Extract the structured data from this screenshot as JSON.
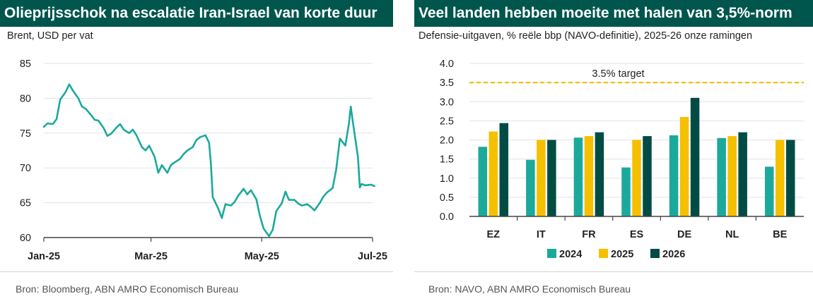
{
  "chart_data": [
    {
      "type": "line",
      "title": "Olieprijsschok na escalatie Iran-Israel van korte duur",
      "subtitle": "Brent, USD per vat",
      "source": "Bron: Bloomberg, ABN AMRO Economisch Bureau",
      "x_tick_labels": [
        "Jan-25",
        "Mar-25",
        "May-25",
        "Jul-25"
      ],
      "ylim": [
        60,
        85
      ],
      "y_ticks": [
        60,
        65,
        70,
        75,
        80,
        85
      ],
      "grid": true,
      "series": [
        {
          "color": "#1ba99c",
          "x": [
            "2025-01-01",
            "2025-01-03",
            "2025-01-06",
            "2025-01-08",
            "2025-01-10",
            "2025-01-13",
            "2025-01-15",
            "2025-01-17",
            "2025-01-20",
            "2025-01-22",
            "2025-01-24",
            "2025-01-27",
            "2025-01-29",
            "2025-01-31",
            "2025-02-03",
            "2025-02-05",
            "2025-02-07",
            "2025-02-10",
            "2025-02-12",
            "2025-02-14",
            "2025-02-17",
            "2025-02-19",
            "2025-02-21",
            "2025-02-24",
            "2025-02-26",
            "2025-02-28",
            "2025-03-03",
            "2025-03-05",
            "2025-03-07",
            "2025-03-10",
            "2025-03-12",
            "2025-03-14",
            "2025-03-17",
            "2025-03-19",
            "2025-03-21",
            "2025-03-24",
            "2025-03-26",
            "2025-03-28",
            "2025-03-31",
            "2025-04-02",
            "2025-04-03",
            "2025-04-04",
            "2025-04-07",
            "2025-04-09",
            "2025-04-11",
            "2025-04-14",
            "2025-04-16",
            "2025-04-18",
            "2025-04-21",
            "2025-04-23",
            "2025-04-25",
            "2025-04-28",
            "2025-04-30",
            "2025-05-02",
            "2025-05-05",
            "2025-05-07",
            "2025-05-09",
            "2025-05-12",
            "2025-05-14",
            "2025-05-16",
            "2025-05-19",
            "2025-05-21",
            "2025-05-23",
            "2025-05-26",
            "2025-05-28",
            "2025-05-30",
            "2025-06-02",
            "2025-06-04",
            "2025-06-06",
            "2025-06-09",
            "2025-06-11",
            "2025-06-13",
            "2025-06-16",
            "2025-06-18",
            "2025-06-19",
            "2025-06-20",
            "2025-06-23",
            "2025-06-24",
            "2025-06-25",
            "2025-06-27",
            "2025-06-30",
            "2025-07-02"
          ],
          "values": [
            75.9,
            76.4,
            76.3,
            77.0,
            79.8,
            80.9,
            82.0,
            81.1,
            80.0,
            78.8,
            78.5,
            77.6,
            76.9,
            76.8,
            75.7,
            74.6,
            74.9,
            75.8,
            76.3,
            75.5,
            75.0,
            75.5,
            74.7,
            73.0,
            72.5,
            73.2,
            71.6,
            69.3,
            70.4,
            69.3,
            70.4,
            70.8,
            71.3,
            72.0,
            72.5,
            73.0,
            74.0,
            74.4,
            74.7,
            73.6,
            70.5,
            65.8,
            64.2,
            62.8,
            64.8,
            64.6,
            65.1,
            66.0,
            67.0,
            66.2,
            66.8,
            65.5,
            63.1,
            61.3,
            60.2,
            61.1,
            63.8,
            64.9,
            66.6,
            65.4,
            65.4,
            64.9,
            64.6,
            64.8,
            64.4,
            63.9,
            65.0,
            65.9,
            66.5,
            67.1,
            69.8,
            74.2,
            73.2,
            76.4,
            78.8,
            76.9,
            71.5,
            67.2,
            67.7,
            67.5,
            67.6,
            67.4
          ]
        }
      ]
    },
    {
      "type": "bar",
      "title": "Veel landen hebben moeite met halen van 3,5%-norm",
      "subtitle": "Defensie-uitgaven, % reële bbp (NAVO-definitie), 2025-26 onze ramingen",
      "source": "Bron: NAVO, ABN AMRO Economisch Bureau",
      "categories": [
        "EZ",
        "IT",
        "FR",
        "ES",
        "DE",
        "NL",
        "BE"
      ],
      "ylim": [
        0,
        4.0
      ],
      "y_ticks": [
        0.0,
        0.5,
        1.0,
        1.5,
        2.0,
        2.5,
        3.0,
        3.5,
        4.0
      ],
      "grid": true,
      "legend_position": "bottom",
      "target": {
        "value": 3.5,
        "label": "3.5% target",
        "color": "#f5c000"
      },
      "series": [
        {
          "name": "2024",
          "color": "#1ba99c",
          "values": [
            1.82,
            1.48,
            2.06,
            1.28,
            2.12,
            2.05,
            1.3
          ]
        },
        {
          "name": "2025",
          "color": "#f5c000",
          "values": [
            2.22,
            2.0,
            2.1,
            2.0,
            2.6,
            2.1,
            2.0
          ]
        },
        {
          "name": "2026",
          "color": "#004c45",
          "values": [
            2.44,
            2.0,
            2.2,
            2.1,
            3.1,
            2.2,
            2.0
          ]
        }
      ]
    }
  ],
  "colors": {
    "title_bg": "#00564d",
    "grid": "#e3e3e3",
    "axis": "#444444"
  }
}
